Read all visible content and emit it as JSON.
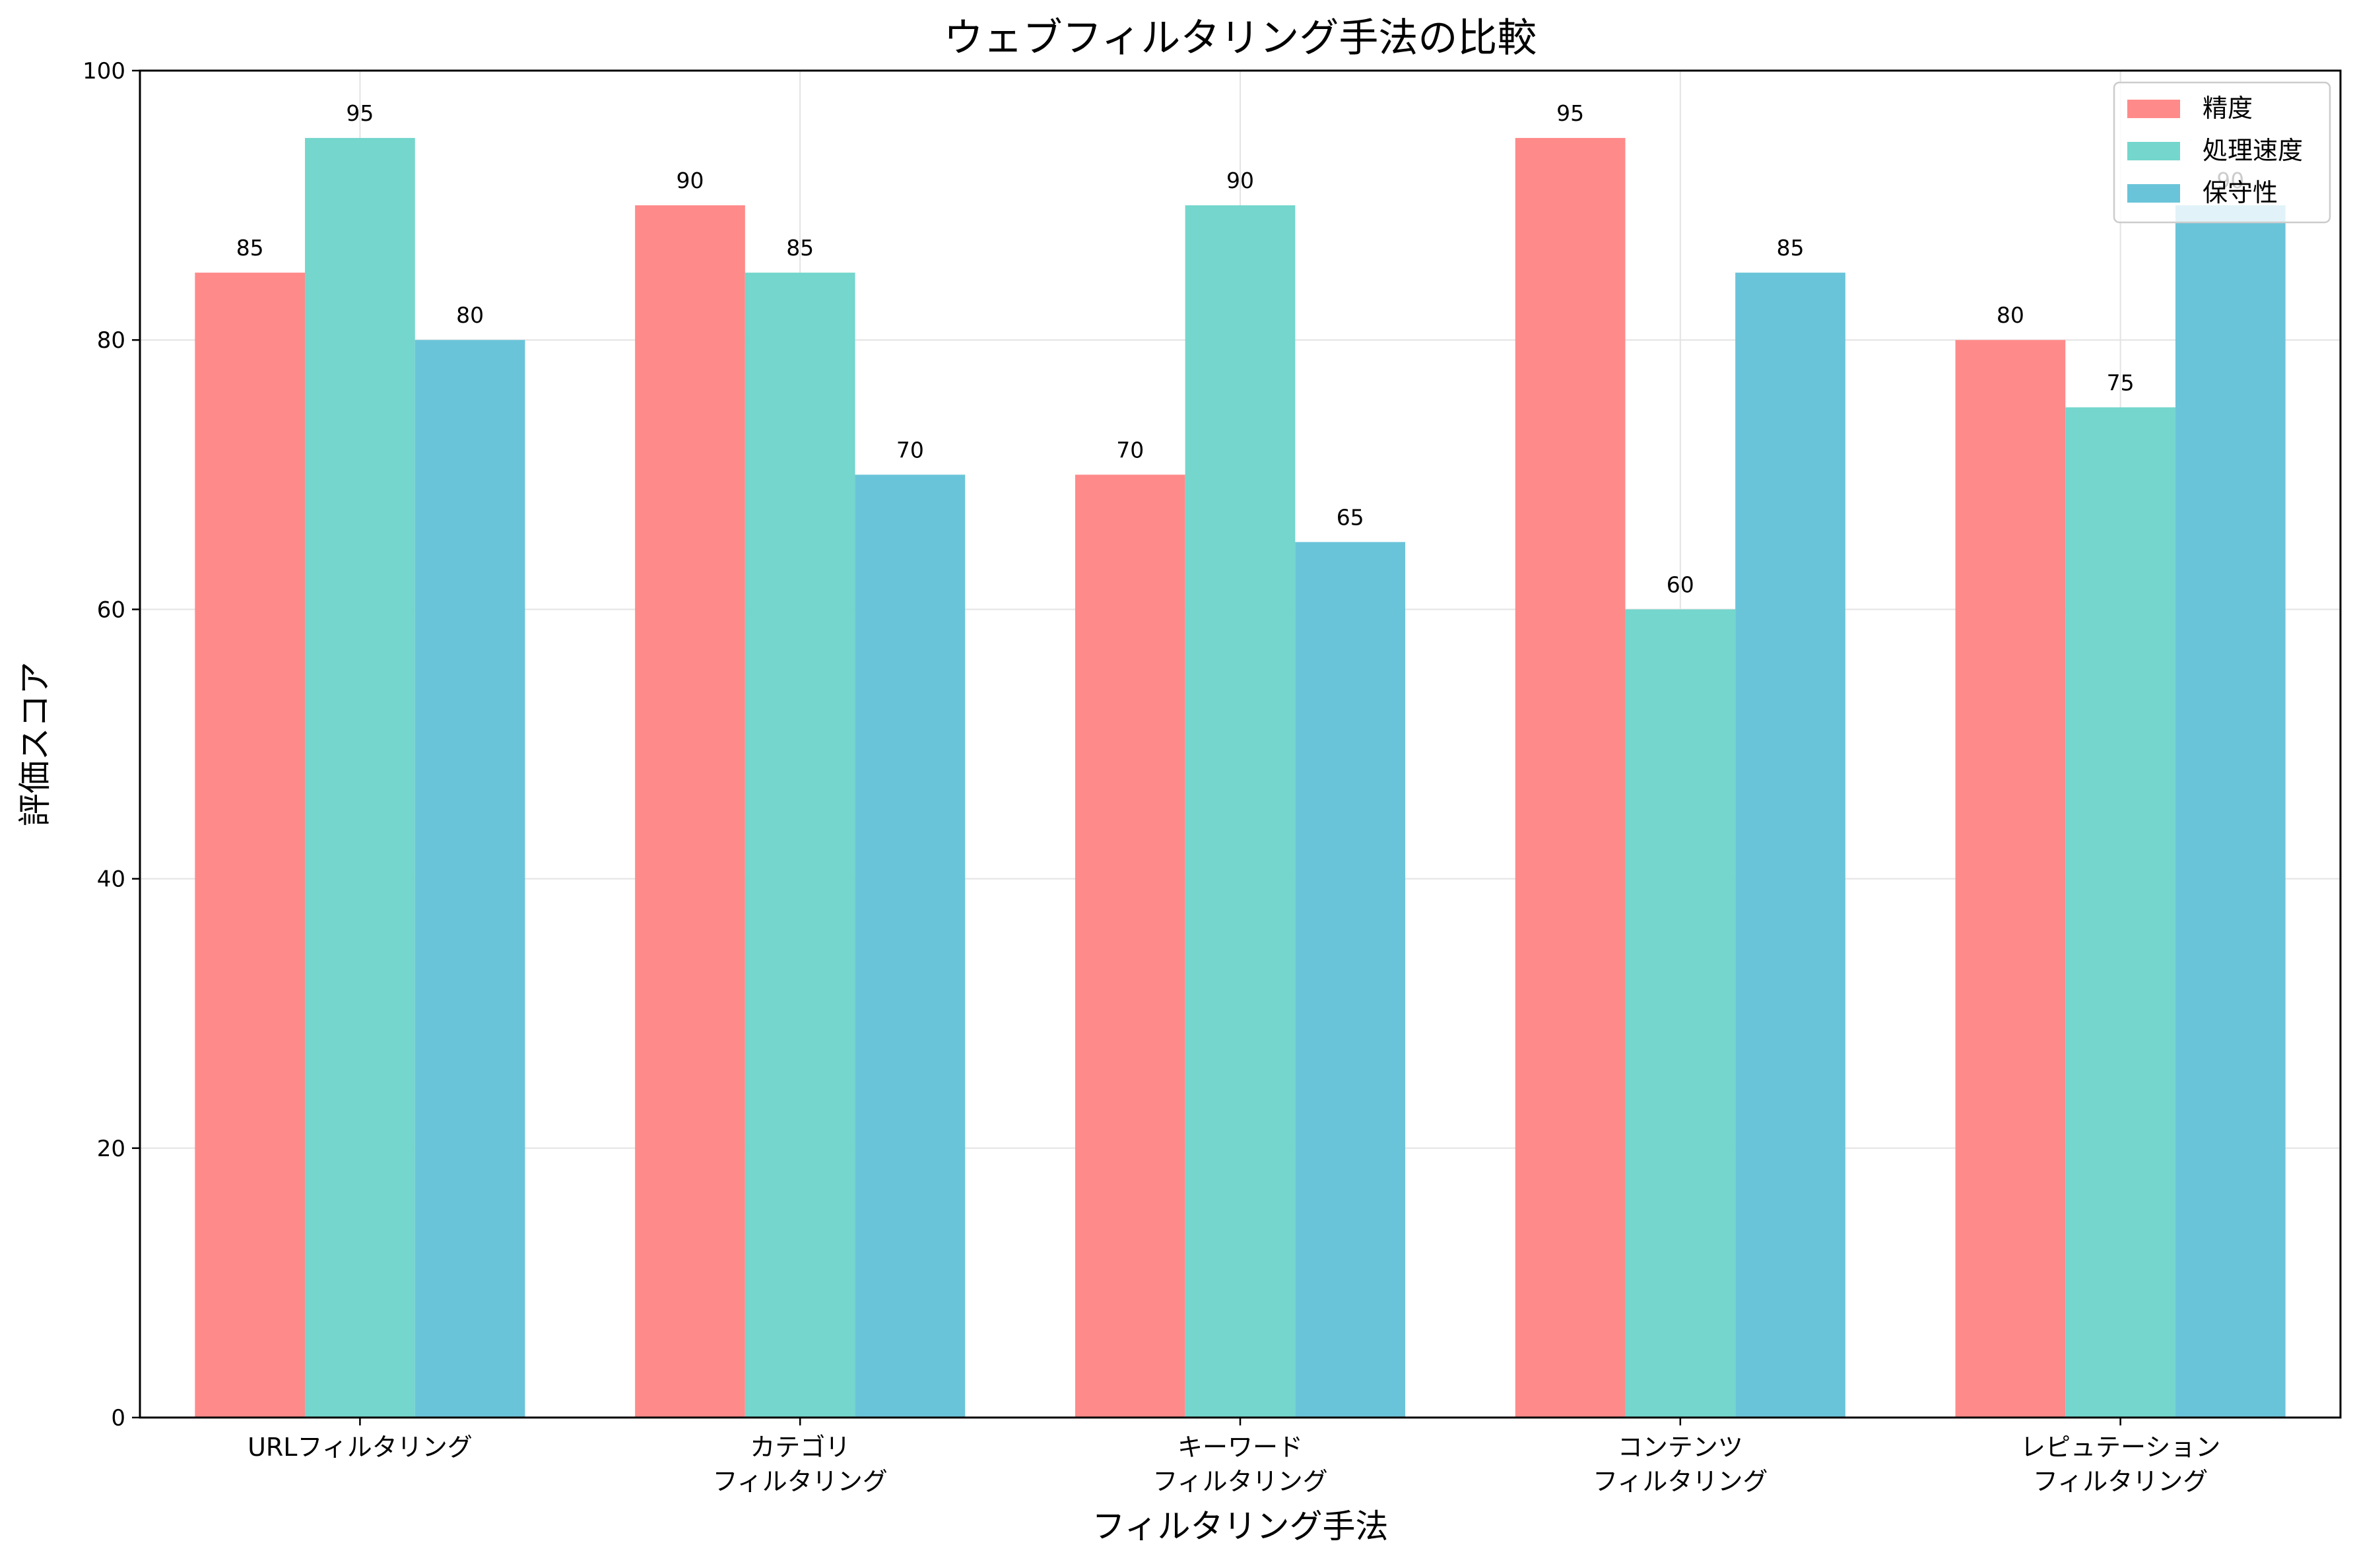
{
  "chart_data": {
    "type": "bar",
    "title": "ウェブフィルタリング手法の比較",
    "xlabel": "フィルタリング手法",
    "ylabel": "評価スコア",
    "ylim": [
      0,
      100
    ],
    "yticks": [
      "0",
      "20",
      "40",
      "60",
      "80",
      "100"
    ],
    "grid": true,
    "legend_position": "top-right",
    "categories": [
      [
        "URLフィルタリング"
      ],
      [
        "カテゴリ",
        "フィルタリング"
      ],
      [
        "キーワード",
        "フィルタリング"
      ],
      [
        "コンテンツ",
        "フィルタリング"
      ],
      [
        "レピュテーション",
        "フィルタリング"
      ]
    ],
    "series": [
      {
        "name": "精度",
        "color": "#ff8a8a",
        "values": [
          85,
          90,
          70,
          95,
          80
        ]
      },
      {
        "name": "処理速度",
        "color": "#74d6cc",
        "values": [
          95,
          85,
          90,
          60,
          75
        ]
      },
      {
        "name": "保守性",
        "color": "#6ac4d9",
        "values": [
          80,
          70,
          65,
          85,
          90
        ]
      }
    ]
  }
}
